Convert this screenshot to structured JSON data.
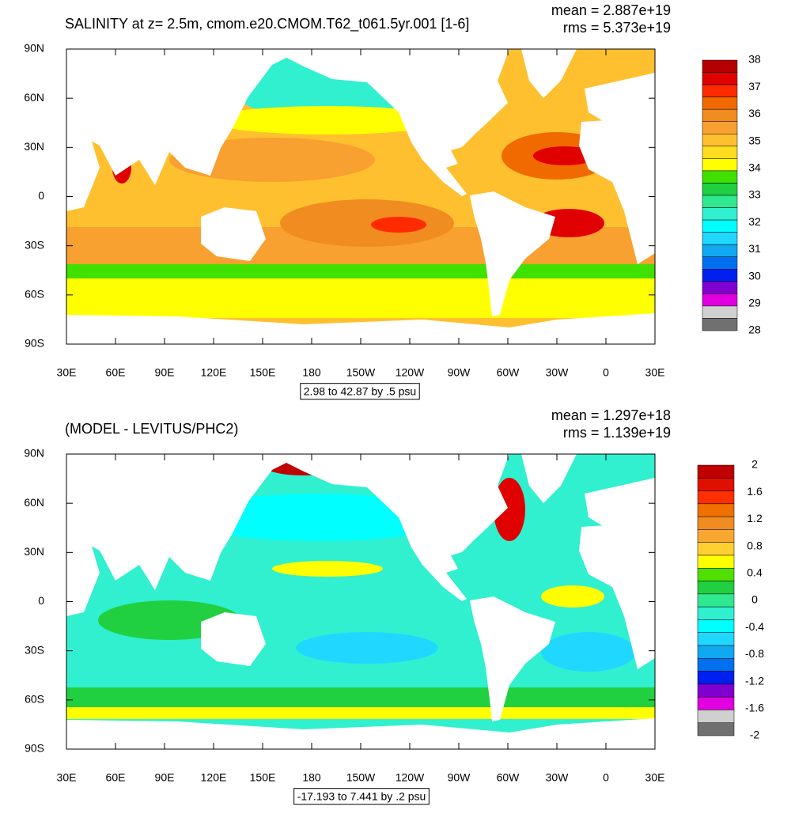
{
  "panels": [
    {
      "title": "SALINITY at z=   2.5m, cmom.e20.CMOM.T62_t061.5yr.001 [1-6]",
      "stats": [
        "mean = 2.887e+19",
        "rms = 5.373e+19"
      ],
      "yticks": [
        "90N",
        "60N",
        "30N",
        "0",
        "30S",
        "60S",
        "90S"
      ],
      "xticks": [
        "30E",
        "60E",
        "90E",
        "120E",
        "150E",
        "180",
        "150W",
        "120W",
        "90W",
        "60W",
        "30W",
        "0",
        "30E"
      ],
      "contour_info": "2.98 to 42.87 by .5 psu",
      "colorbar": {
        "labels": [
          38,
          37,
          36,
          35,
          34,
          33,
          32,
          31,
          30,
          29,
          28
        ],
        "colors": [
          "#b40000",
          "#e00000",
          "#ff2a00",
          "#f06a00",
          "#f08c20",
          "#f8a030",
          "#ffc030",
          "#ffdc20",
          "#ffff00",
          "#40e000",
          "#20d040",
          "#30e890",
          "#30f0d0",
          "#00ffff",
          "#20d8ff",
          "#10a8f0",
          "#0070f0",
          "#0020f0",
          "#8000d0",
          "#e000e0",
          "#d0d0d0",
          "#707070"
        ]
      }
    },
    {
      "title": "(MODEL - LEVITUS/PHC2)",
      "stats": [
        "mean = 1.297e+18",
        "rms = 1.139e+19"
      ],
      "yticks": [
        "90N",
        "60N",
        "30N",
        "0",
        "30S",
        "60S",
        "90S"
      ],
      "xticks": [
        "30E",
        "60E",
        "90E",
        "120E",
        "150E",
        "180",
        "150W",
        "120W",
        "90W",
        "60W",
        "30W",
        "0",
        "30E"
      ],
      "contour_info": "-17.193 to 7.441 by .2 psu",
      "colorbar": {
        "labels": [
          2,
          1.6,
          1.2,
          0.8,
          0.4,
          0,
          -0.4,
          -0.8,
          -1.2,
          -1.6,
          -2
        ],
        "colors": [
          "#c00000",
          "#e01000",
          "#ff3000",
          "#f07000",
          "#f08c20",
          "#f8a830",
          "#ffd030",
          "#ffff00",
          "#50e000",
          "#20d040",
          "#30e890",
          "#30f0d0",
          "#00ffff",
          "#20d8ff",
          "#10a8f0",
          "#0070f0",
          "#0020f0",
          "#8000d0",
          "#e000e0",
          "#d0d0d0",
          "#707070"
        ]
      }
    }
  ]
}
